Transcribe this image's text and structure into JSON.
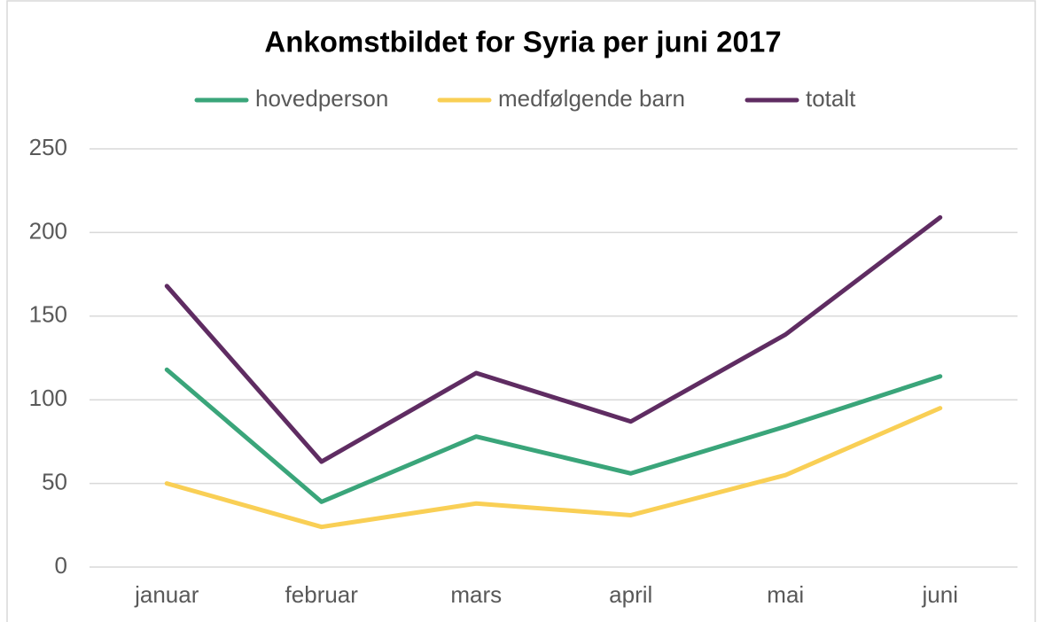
{
  "chart_data": {
    "type": "line",
    "title": "Ankomstbildet for Syria per juni 2017",
    "categories": [
      "januar",
      "februar",
      "mars",
      "april",
      "mai",
      "juni"
    ],
    "series": [
      {
        "name": "hovedperson",
        "color": "#3aa57a",
        "values": [
          118,
          39,
          78,
          56,
          84,
          114
        ]
      },
      {
        "name": "medfølgende barn",
        "color": "#f9cf55",
        "values": [
          50,
          24,
          38,
          31,
          55,
          95
        ]
      },
      {
        "name": "totalt",
        "color": "#5f2c62",
        "values": [
          168,
          63,
          116,
          87,
          139,
          209
        ]
      }
    ],
    "ylim": [
      0,
      250
    ],
    "yticks": [
      0,
      50,
      100,
      150,
      200,
      250
    ],
    "grid": true,
    "legend": "top"
  }
}
